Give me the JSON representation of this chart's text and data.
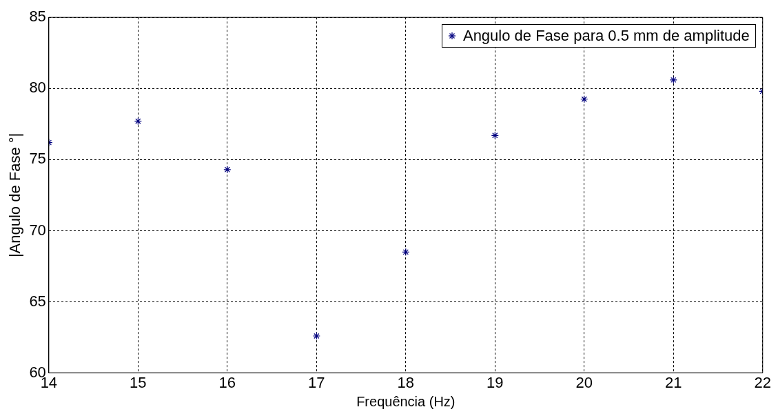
{
  "chart_data": {
    "type": "scatter",
    "xlabel": "Frequência (Hz)",
    "ylabel": "|Angulo de Fase °|",
    "x": [
      14,
      15,
      16,
      17,
      18,
      19,
      20,
      21,
      22
    ],
    "series": [
      {
        "name": "Angulo de Fase para 0.5 mm de amplitude",
        "color": "#00007f",
        "values": [
          76.2,
          77.7,
          74.3,
          62.6,
          68.5,
          76.7,
          79.25,
          80.6,
          79.8
        ]
      }
    ],
    "xlim": [
      14,
      22
    ],
    "xticks": [
      14,
      15,
      16,
      17,
      18,
      19,
      20,
      21,
      22
    ],
    "ylim": [
      60,
      85
    ],
    "yticks": [
      60,
      65,
      70,
      75,
      80,
      85
    ],
    "grid": true,
    "legend": "top right",
    "marker": "cross",
    "line_style": "dashed"
  }
}
